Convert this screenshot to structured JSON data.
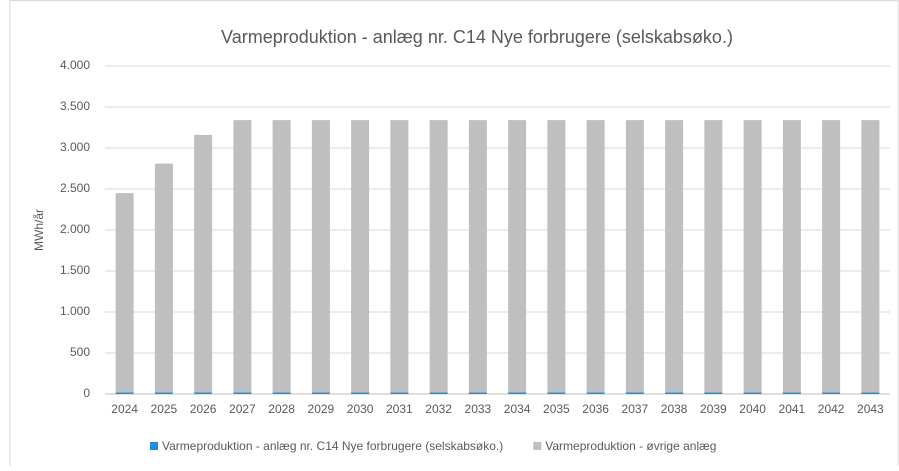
{
  "chart_data": {
    "type": "stacked-bar",
    "title": "Varmeproduktion - anlæg nr. C14 Nye forbrugere (selskabsøko.)",
    "y_label": "MWh/år",
    "categories": [
      "2024",
      "2025",
      "2026",
      "2027",
      "2028",
      "2029",
      "2030",
      "2031",
      "2032",
      "2033",
      "2034",
      "2035",
      "2036",
      "2037",
      "2038",
      "2039",
      "2040",
      "2041",
      "2042",
      "2043"
    ],
    "series": [
      {
        "name": "Varmeproduktion - anlæg nr. C14 Nye forbrugere (selskabsøko.)",
        "color": "#1f8fd8",
        "values": [
          20,
          20,
          20,
          20,
          20,
          20,
          20,
          20,
          20,
          20,
          20,
          20,
          20,
          20,
          20,
          20,
          20,
          20,
          20,
          20
        ]
      },
      {
        "name": "Varmeproduktion - øvrige anlæg",
        "color": "#bfbfbf",
        "values": [
          2430,
          2790,
          3140,
          3320,
          3320,
          3320,
          3320,
          3320,
          3320,
          3320,
          3320,
          3320,
          3320,
          3320,
          3320,
          3320,
          3320,
          3320,
          3320,
          3320
        ]
      }
    ],
    "ylim": [
      0,
      4000
    ],
    "yticks": [
      0,
      500,
      {
        "value": 1000,
        "label": "1.000"
      },
      {
        "value": 1500,
        "label": "1.500"
      },
      {
        "value": 2000,
        "label": "2.000"
      },
      {
        "value": 2500,
        "label": "2.500"
      },
      {
        "value": 3000,
        "label": "3.000"
      },
      {
        "value": 3500,
        "label": "3.500"
      },
      {
        "value": 4000,
        "label": "4.000"
      }
    ],
    "grid": true,
    "legend": "bottom"
  }
}
